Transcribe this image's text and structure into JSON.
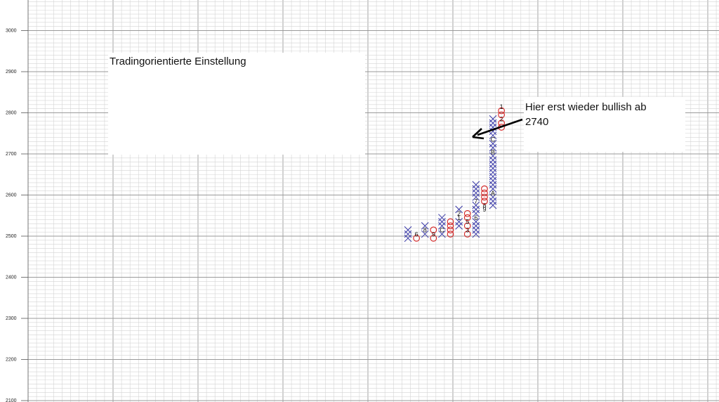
{
  "chart_data": {
    "type": "point-and-figure",
    "box_size": 10,
    "ylim": [
      2100,
      3070
    ],
    "y_ticks": [
      2100,
      2200,
      2300,
      2400,
      2500,
      2600,
      2700,
      2800,
      2900,
      3000
    ],
    "grid": true,
    "columns": [
      {
        "type": "X",
        "low": 2490,
        "high": 2510
      },
      {
        "type": "O",
        "low": 2490,
        "high": 2500,
        "markers": [
          {
            "value": 2500,
            "label": "6"
          }
        ]
      },
      {
        "type": "X",
        "low": 2500,
        "high": 2520,
        "markers": [
          {
            "value": 2510,
            "label": "8"
          }
        ]
      },
      {
        "type": "O",
        "low": 2490,
        "high": 2510,
        "markers": [
          {
            "value": 2500,
            "label": "9"
          }
        ]
      },
      {
        "type": "X",
        "low": 2500,
        "high": 2540,
        "markers": [
          {
            "value": 2510,
            "label": "C"
          }
        ]
      },
      {
        "type": "O",
        "low": 2500,
        "high": 2530
      },
      {
        "type": "X",
        "low": 2520,
        "high": 2560,
        "markers": [
          {
            "value": 2540,
            "label": "1"
          },
          {
            "value": 2550,
            "label": "2"
          }
        ]
      },
      {
        "type": "O",
        "low": 2500,
        "high": 2550,
        "markers": [
          {
            "value": 2510,
            "label": "3"
          },
          {
            "value": 2530,
            "label": "5"
          }
        ]
      },
      {
        "type": "X",
        "low": 2500,
        "high": 2620,
        "markers": [
          {
            "value": 2540,
            "label": "6"
          },
          {
            "value": 2580,
            "label": "7"
          }
        ]
      },
      {
        "type": "O",
        "low": 2560,
        "high": 2610,
        "markers": [
          {
            "value": 2570,
            "label": "8"
          },
          {
            "value": 2560,
            "label": "9"
          }
        ]
      },
      {
        "type": "X",
        "low": 2570,
        "high": 2780,
        "markers": [
          {
            "value": 2600,
            "label": "A"
          },
          {
            "value": 2700,
            "label": "B"
          },
          {
            "value": 2730,
            "label": "C"
          }
        ]
      },
      {
        "type": "O",
        "low": 2760,
        "high": 2810,
        "markers": [
          {
            "value": 2810,
            "label": "1"
          },
          {
            "value": 2780,
            "label": "2"
          }
        ]
      }
    ],
    "annotations": [
      {
        "text": "Tradingorientierte Einstellung"
      },
      {
        "text": "Hier erst wieder bullish ab 2740"
      }
    ]
  },
  "text": {
    "tick_labels": [
      "2100",
      "2200",
      "2300",
      "2400",
      "2500",
      "2600",
      "2700",
      "2800",
      "2900",
      "3000"
    ],
    "note_left": "Tradingorientierte Einstellung",
    "note_right_line1": "Hier erst wieder bullish ab",
    "note_right_line2": "2740"
  },
  "colors": {
    "grid_minor": "#d4d4d4",
    "grid_major": "#9a9a9a",
    "x_mark": "#3a3aa8",
    "o_mark": "#d62020",
    "arrow": "#000000"
  }
}
